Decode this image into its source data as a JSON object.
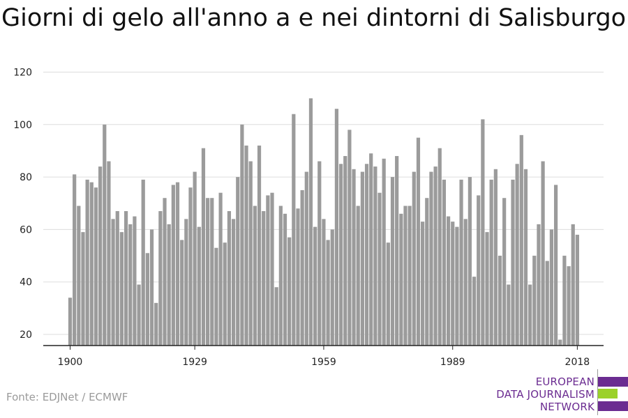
{
  "title": "Giorni di gelo all'anno a e nei dintorni di Salisburgo",
  "source": "Fonte: EDJNet / ECMWF",
  "logo": {
    "lines": [
      "EUROPEAN",
      "DATA JOURNALISM",
      "NETWORK"
    ],
    "colors": [
      "#6b2c91",
      "#9bd12a",
      "#6b2c91"
    ],
    "text_color": "#6b2c91"
  },
  "colors": {
    "bar": "#9b9b9b",
    "grid": "#dddddd",
    "axis": "#222222"
  },
  "chart_data": {
    "type": "bar",
    "title": "Giorni di gelo all'anno a e nei dintorni di Salisburgo",
    "xlabel": "",
    "ylabel": "",
    "x_start": 1900,
    "x_ticks": [
      1900,
      1929,
      1959,
      1989,
      2018
    ],
    "y_ticks": [
      20,
      40,
      60,
      80,
      100,
      120
    ],
    "ylim": [
      15,
      120
    ],
    "grid": true,
    "values": [
      34,
      81,
      69,
      59,
      79,
      78,
      76,
      84,
      100,
      86,
      64,
      67,
      59,
      67,
      62,
      65,
      39,
      79,
      51,
      60,
      32,
      67,
      72,
      62,
      77,
      78,
      56,
      64,
      76,
      82,
      61,
      91,
      72,
      72,
      53,
      74,
      55,
      67,
      64,
      80,
      100,
      92,
      86,
      69,
      92,
      67,
      73,
      74,
      38,
      69,
      66,
      57,
      104,
      68,
      75,
      82,
      110,
      61,
      86,
      64,
      56,
      60,
      106,
      85,
      88,
      98,
      83,
      69,
      82,
      85,
      89,
      84,
      74,
      87,
      55,
      80,
      88,
      66,
      69,
      69,
      82,
      95,
      63,
      72,
      82,
      84,
      91,
      79,
      65,
      63,
      61,
      79,
      64,
      80,
      42,
      73,
      102,
      59,
      79,
      83,
      50,
      72,
      39,
      79,
      85,
      96,
      83,
      39,
      50,
      62,
      86,
      48,
      60,
      77,
      18,
      50,
      46,
      62,
      58
    ]
  }
}
